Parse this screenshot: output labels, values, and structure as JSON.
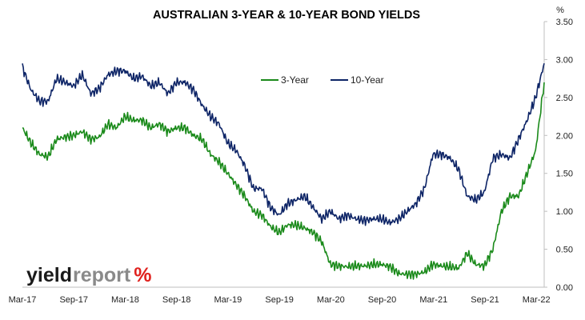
{
  "colors": {
    "three_year": "#1a8a1a",
    "ten_year": "#0d2466",
    "logo_dark": "#1a1a1a",
    "logo_grey": "#8a8a8a",
    "logo_red": "#e0221e",
    "logo_green": "#1a8a1a"
  },
  "logo": {
    "part1": "yield",
    "part2": "report",
    "part3": "%"
  },
  "chart_data": {
    "type": "line",
    "title": "AUSTRALIAN 3-YEAR & 10-YEAR BOND YIELDS",
    "y_unit": "%",
    "y_axis_position": "right",
    "ylim": [
      0,
      3.5
    ],
    "y_ticks": [
      "0.00",
      "0.50",
      "1.00",
      "1.50",
      "2.00",
      "2.50",
      "3.00",
      "3.50"
    ],
    "x_ticks": [
      "Mar-17",
      "Sep-17",
      "Mar-18",
      "Sep-18",
      "Mar-19",
      "Sep-19",
      "Mar-20",
      "Sep-20",
      "Mar-21",
      "Sep-21",
      "Mar-22"
    ],
    "grid": false,
    "legend_position": "top-center",
    "x": [
      "2017-03",
      "2017-04",
      "2017-05",
      "2017-06",
      "2017-07",
      "2017-08",
      "2017-09",
      "2017-10",
      "2017-11",
      "2017-12",
      "2018-01",
      "2018-02",
      "2018-03",
      "2018-04",
      "2018-05",
      "2018-06",
      "2018-07",
      "2018-08",
      "2018-09",
      "2018-10",
      "2018-11",
      "2018-12",
      "2019-01",
      "2019-02",
      "2019-03",
      "2019-04",
      "2019-05",
      "2019-06",
      "2019-07",
      "2019-08",
      "2019-09",
      "2019-10",
      "2019-11",
      "2019-12",
      "2020-01",
      "2020-02",
      "2020-03",
      "2020-04",
      "2020-05",
      "2020-06",
      "2020-07",
      "2020-08",
      "2020-09",
      "2020-10",
      "2020-11",
      "2020-12",
      "2021-01",
      "2021-02",
      "2021-03",
      "2021-04",
      "2021-05",
      "2021-06",
      "2021-07",
      "2021-08",
      "2021-09",
      "2021-10",
      "2021-11",
      "2021-12",
      "2022-01",
      "2022-02",
      "2022-03",
      "2022-04"
    ],
    "series": [
      {
        "name": "3-Year",
        "values": [
          2.1,
          1.9,
          1.75,
          1.72,
          1.95,
          1.98,
          2.0,
          2.05,
          1.95,
          1.98,
          2.15,
          2.1,
          2.25,
          2.2,
          2.2,
          2.1,
          2.15,
          2.05,
          2.1,
          2.1,
          2.0,
          1.95,
          1.75,
          1.65,
          1.5,
          1.35,
          1.2,
          1.0,
          0.95,
          0.8,
          0.72,
          0.82,
          0.82,
          0.78,
          0.72,
          0.6,
          0.3,
          0.28,
          0.27,
          0.28,
          0.28,
          0.3,
          0.3,
          0.27,
          0.18,
          0.17,
          0.17,
          0.2,
          0.3,
          0.28,
          0.27,
          0.25,
          0.45,
          0.3,
          0.28,
          0.5,
          1.0,
          1.2,
          1.2,
          1.5,
          1.8,
          2.7
        ]
      },
      {
        "name": "10-Year",
        "values": [
          2.9,
          2.6,
          2.45,
          2.45,
          2.75,
          2.7,
          2.65,
          2.8,
          2.55,
          2.62,
          2.8,
          2.85,
          2.85,
          2.75,
          2.78,
          2.65,
          2.7,
          2.55,
          2.7,
          2.7,
          2.6,
          2.4,
          2.25,
          2.15,
          1.9,
          1.8,
          1.6,
          1.3,
          1.3,
          1.05,
          0.95,
          1.1,
          1.15,
          1.2,
          1.05,
          0.9,
          1.0,
          0.9,
          0.95,
          0.9,
          0.88,
          0.9,
          0.9,
          0.85,
          0.9,
          1.0,
          1.1,
          1.3,
          1.75,
          1.75,
          1.7,
          1.55,
          1.2,
          1.15,
          1.25,
          1.7,
          1.75,
          1.7,
          1.95,
          2.2,
          2.5,
          2.95
        ]
      }
    ]
  }
}
